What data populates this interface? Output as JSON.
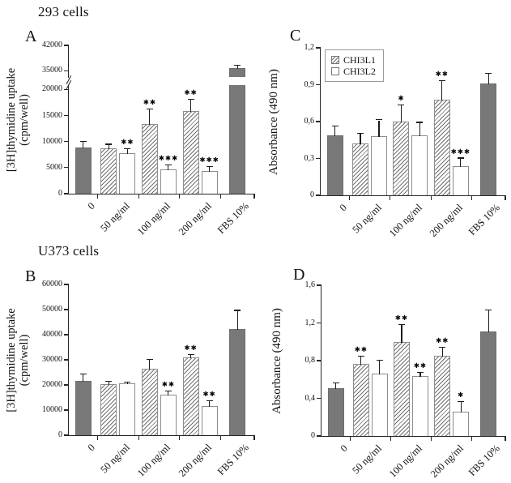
{
  "figure": {
    "section_titles": {
      "top": "293 cells",
      "bottom": "U373 cells"
    },
    "colors": {
      "solid_bar": "#787878",
      "hatch_line": "#6f6f6f",
      "bar_border": "#8d8d8d",
      "axis": "#262626",
      "error_bar": "#1c1c1c"
    }
  },
  "legend": {
    "items": [
      {
        "label": "CHI3L1",
        "fill": "hatch"
      },
      {
        "label": "CHI3L2",
        "fill": "white"
      }
    ]
  },
  "chart_data": [
    {
      "type": "bar",
      "panel": "A",
      "cell_line": "293 cells",
      "ylabel": "[3H]thymidine uptake (cpm/well)",
      "ylabel_lines": [
        "[3H]thymidine uptake",
        "(cpm/well)"
      ],
      "categories": [
        "0",
        "50 ng/ml",
        "100 ng/ml",
        "200 ng/ml",
        "FBS 10%"
      ],
      "y_max": 42000,
      "axis_break": {
        "below": 20000,
        "above": 35000
      },
      "y_ticks": [
        {
          "v": 0,
          "label": "0"
        },
        {
          "v": 5000,
          "label": "5000"
        },
        {
          "v": 10000,
          "label": "10000"
        },
        {
          "v": 15000,
          "label": "15000"
        },
        {
          "v": 20000,
          "label": "20000"
        },
        {
          "v": 35000,
          "label": "35000"
        },
        {
          "v": 42000,
          "label": "42000"
        }
      ],
      "bars": [
        {
          "cat": 0,
          "sub": 0,
          "series": "control",
          "value": 8800,
          "err": 1100,
          "sig": ""
        },
        {
          "cat": 1,
          "sub": 0,
          "series": "CHI3L1",
          "value": 8700,
          "err": 700,
          "sig": ""
        },
        {
          "cat": 1,
          "sub": 1,
          "series": "CHI3L2",
          "value": 7800,
          "err": 700,
          "sig": "**"
        },
        {
          "cat": 2,
          "sub": 0,
          "series": "CHI3L1",
          "value": 13400,
          "err": 2700,
          "sig": "**"
        },
        {
          "cat": 2,
          "sub": 1,
          "series": "CHI3L2",
          "value": 4700,
          "err": 700,
          "sig": "***"
        },
        {
          "cat": 3,
          "sub": 0,
          "series": "CHI3L1",
          "value": 15900,
          "err": 2100,
          "sig": "**"
        },
        {
          "cat": 3,
          "sub": 1,
          "series": "CHI3L2",
          "value": 4400,
          "err": 700,
          "sig": "***"
        },
        {
          "cat": 4,
          "sub": 0,
          "series": "FBS",
          "value": 35700,
          "err": 700,
          "sig": ""
        }
      ]
    },
    {
      "type": "bar",
      "panel": "B",
      "cell_line": "U373 cells",
      "ylabel": "[3H]thymidine uptake (cpm/well)",
      "ylabel_lines": [
        "[3H]thymidine uptake",
        "(cpm/well)"
      ],
      "categories": [
        "0",
        "50 ng/ml",
        "100 ng/ml",
        "200 ng/ml",
        "FBS 10%"
      ],
      "y_max": 60000,
      "y_ticks": [
        {
          "v": 0,
          "label": "0"
        },
        {
          "v": 10000,
          "label": "10000"
        },
        {
          "v": 20000,
          "label": "20000"
        },
        {
          "v": 30000,
          "label": "30000"
        },
        {
          "v": 40000,
          "label": "40000"
        },
        {
          "v": 50000,
          "label": "50000"
        },
        {
          "v": 60000,
          "label": "60000"
        }
      ],
      "bars": [
        {
          "cat": 0,
          "sub": 0,
          "series": "control",
          "value": 21700,
          "err": 2400,
          "sig": ""
        },
        {
          "cat": 1,
          "sub": 0,
          "series": "CHI3L1",
          "value": 20300,
          "err": 900,
          "sig": ""
        },
        {
          "cat": 1,
          "sub": 1,
          "series": "CHI3L2",
          "value": 20500,
          "err": 400,
          "sig": ""
        },
        {
          "cat": 2,
          "sub": 0,
          "series": "CHI3L1",
          "value": 26500,
          "err": 3500,
          "sig": ""
        },
        {
          "cat": 2,
          "sub": 1,
          "series": "CHI3L2",
          "value": 16000,
          "err": 1300,
          "sig": "**"
        },
        {
          "cat": 3,
          "sub": 0,
          "series": "CHI3L1",
          "value": 31000,
          "err": 800,
          "sig": "**"
        },
        {
          "cat": 3,
          "sub": 1,
          "series": "CHI3L2",
          "value": 11700,
          "err": 1900,
          "sig": "**"
        },
        {
          "cat": 4,
          "sub": 0,
          "series": "FBS",
          "value": 42300,
          "err": 7200,
          "sig": ""
        }
      ]
    },
    {
      "type": "bar",
      "panel": "C",
      "cell_line": "293 cells",
      "ylabel": "Absorbance (490 nm)",
      "ylabel_lines": [
        "Absorbance (490 nm)"
      ],
      "categories": [
        "0",
        "50 ng/ml",
        "100 ng/ml",
        "200 ng/ml",
        "FBS 10%"
      ],
      "y_max": 1.2,
      "has_legend": true,
      "y_ticks": [
        {
          "v": 0,
          "label": "0"
        },
        {
          "v": 0.3,
          "label": "0,3"
        },
        {
          "v": 0.6,
          "label": "0,6"
        },
        {
          "v": 0.9,
          "label": "0,9"
        },
        {
          "v": 1.2,
          "label": "1,2"
        }
      ],
      "bars": [
        {
          "cat": 0,
          "sub": 0,
          "series": "control",
          "value": 0.49,
          "err": 0.07,
          "sig": ""
        },
        {
          "cat": 1,
          "sub": 0,
          "series": "CHI3L1",
          "value": 0.42,
          "err": 0.08,
          "sig": ""
        },
        {
          "cat": 1,
          "sub": 1,
          "series": "CHI3L2",
          "value": 0.48,
          "err": 0.13,
          "sig": ""
        },
        {
          "cat": 2,
          "sub": 0,
          "series": "CHI3L1",
          "value": 0.6,
          "err": 0.13,
          "sig": "*"
        },
        {
          "cat": 2,
          "sub": 1,
          "series": "CHI3L2",
          "value": 0.49,
          "err": 0.1,
          "sig": ""
        },
        {
          "cat": 3,
          "sub": 0,
          "series": "CHI3L1",
          "value": 0.78,
          "err": 0.15,
          "sig": "**"
        },
        {
          "cat": 3,
          "sub": 1,
          "series": "CHI3L2",
          "value": 0.24,
          "err": 0.06,
          "sig": "***"
        },
        {
          "cat": 4,
          "sub": 0,
          "series": "FBS",
          "value": 0.91,
          "err": 0.08,
          "sig": ""
        }
      ]
    },
    {
      "type": "bar",
      "panel": "D",
      "cell_line": "U373 cells",
      "ylabel": "Absorbance (490 nm)",
      "ylabel_lines": [
        "Absorbance (490 nm)"
      ],
      "categories": [
        "0",
        "50 ng/ml",
        "100 ng/ml",
        "200 ng/ml",
        "FBS 10%"
      ],
      "y_max": 1.6,
      "y_ticks": [
        {
          "v": 0,
          "label": "0"
        },
        {
          "v": 0.4,
          "label": "0,4"
        },
        {
          "v": 0.8,
          "label": "0,8"
        },
        {
          "v": 1.2,
          "label": "1,2"
        },
        {
          "v": 1.6,
          "label": "1,6"
        }
      ],
      "bars": [
        {
          "cat": 0,
          "sub": 0,
          "series": "control",
          "value": 0.51,
          "err": 0.05,
          "sig": ""
        },
        {
          "cat": 1,
          "sub": 0,
          "series": "CHI3L1",
          "value": 0.77,
          "err": 0.07,
          "sig": "**"
        },
        {
          "cat": 1,
          "sub": 1,
          "series": "CHI3L2",
          "value": 0.66,
          "err": 0.14,
          "sig": ""
        },
        {
          "cat": 2,
          "sub": 0,
          "series": "CHI3L1",
          "value": 1.0,
          "err": 0.18,
          "sig": "**"
        },
        {
          "cat": 2,
          "sub": 1,
          "series": "CHI3L2",
          "value": 0.64,
          "err": 0.03,
          "sig": "**"
        },
        {
          "cat": 3,
          "sub": 0,
          "series": "CHI3L1",
          "value": 0.85,
          "err": 0.09,
          "sig": "**"
        },
        {
          "cat": 3,
          "sub": 1,
          "series": "CHI3L2",
          "value": 0.26,
          "err": 0.1,
          "sig": "*"
        },
        {
          "cat": 4,
          "sub": 0,
          "series": "FBS",
          "value": 1.11,
          "err": 0.22,
          "sig": ""
        }
      ]
    }
  ]
}
